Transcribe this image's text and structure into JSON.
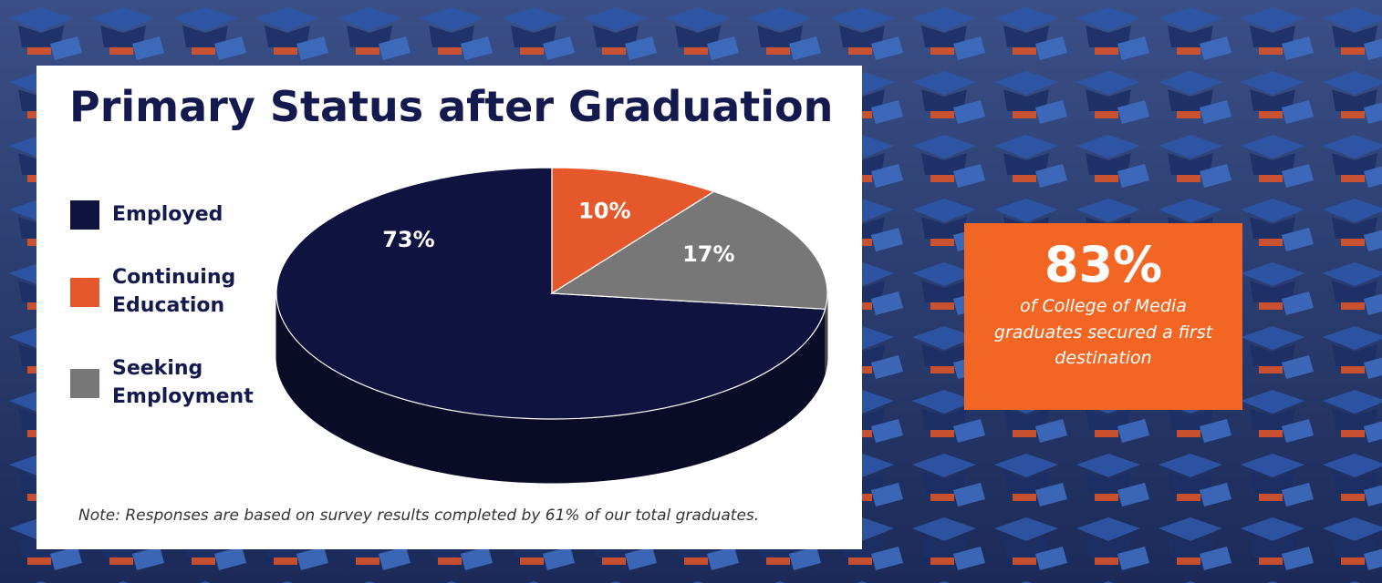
{
  "chart_data": {
    "type": "pie",
    "title": "Primary Status after Graduation",
    "categories": [
      "Employed",
      "Continuing Education",
      "Seeking Employment"
    ],
    "values": [
      73,
      10,
      17
    ],
    "value_labels": [
      "73%",
      "10%",
      "17%"
    ],
    "colors": [
      "#10133f",
      "#e4582b",
      "#777777"
    ],
    "note": "Note: Responses are based on survey results completed by 61% of our total graduates."
  },
  "callout": {
    "headline": "83%",
    "text": "of College of Media graduates secured a first destination"
  }
}
